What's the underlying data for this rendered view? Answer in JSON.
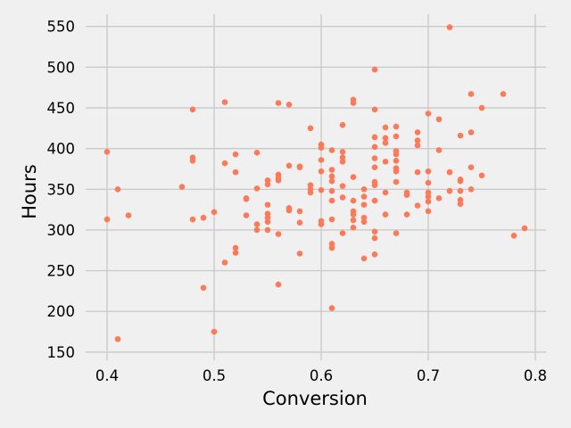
{
  "chart_data": {
    "type": "scatter",
    "title": "",
    "xlabel": "Conversion",
    "ylabel": "Hours",
    "xlim": [
      0.38,
      0.81
    ],
    "ylim": [
      140,
      565
    ],
    "xticks": [
      0.4,
      0.5,
      0.6,
      0.7,
      0.8
    ],
    "xtick_labels": [
      "0.4",
      "0.5",
      "0.6",
      "0.7",
      "0.8"
    ],
    "yticks": [
      150,
      200,
      250,
      300,
      350,
      400,
      450,
      500,
      550
    ],
    "ytick_labels": [
      "150",
      "200",
      "250",
      "300",
      "350",
      "400",
      "450",
      "500",
      "550"
    ],
    "grid": true,
    "legend": "none",
    "marker_color": "#fc7a57",
    "background": "#f0f0f0",
    "points": [
      [
        0.4,
        396
      ],
      [
        0.4,
        313
      ],
      [
        0.41,
        350
      ],
      [
        0.41,
        166
      ],
      [
        0.42,
        318
      ],
      [
        0.47,
        353
      ],
      [
        0.48,
        448
      ],
      [
        0.48,
        389
      ],
      [
        0.48,
        385
      ],
      [
        0.48,
        313
      ],
      [
        0.49,
        315
      ],
      [
        0.49,
        229
      ],
      [
        0.5,
        322
      ],
      [
        0.5,
        175
      ],
      [
        0.51,
        457
      ],
      [
        0.51,
        382
      ],
      [
        0.51,
        260
      ],
      [
        0.52,
        393
      ],
      [
        0.52,
        371
      ],
      [
        0.52,
        278
      ],
      [
        0.52,
        272
      ],
      [
        0.53,
        339
      ],
      [
        0.53,
        338
      ],
      [
        0.53,
        318
      ],
      [
        0.54,
        395
      ],
      [
        0.54,
        351
      ],
      [
        0.54,
        307
      ],
      [
        0.54,
        300
      ],
      [
        0.55,
        361
      ],
      [
        0.55,
        356
      ],
      [
        0.55,
        331
      ],
      [
        0.55,
        320
      ],
      [
        0.55,
        315
      ],
      [
        0.55,
        310
      ],
      [
        0.55,
        300
      ],
      [
        0.56,
        456
      ],
      [
        0.56,
        368
      ],
      [
        0.56,
        364
      ],
      [
        0.56,
        361
      ],
      [
        0.56,
        295
      ],
      [
        0.56,
        233
      ],
      [
        0.57,
        454
      ],
      [
        0.57,
        379
      ],
      [
        0.57,
        327
      ],
      [
        0.57,
        324
      ],
      [
        0.58,
        378
      ],
      [
        0.58,
        377
      ],
      [
        0.58,
        323
      ],
      [
        0.58,
        309
      ],
      [
        0.58,
        271
      ],
      [
        0.59,
        425
      ],
      [
        0.59,
        355
      ],
      [
        0.59,
        350
      ],
      [
        0.59,
        346
      ],
      [
        0.6,
        405
      ],
      [
        0.6,
        401
      ],
      [
        0.6,
        386
      ],
      [
        0.6,
        372
      ],
      [
        0.6,
        349
      ],
      [
        0.6,
        311
      ],
      [
        0.6,
        307
      ],
      [
        0.61,
        398
      ],
      [
        0.61,
        374
      ],
      [
        0.61,
        366
      ],
      [
        0.61,
        360
      ],
      [
        0.61,
        348
      ],
      [
        0.61,
        336
      ],
      [
        0.61,
        313
      ],
      [
        0.61,
        283
      ],
      [
        0.61,
        278
      ],
      [
        0.61,
        204
      ],
      [
        0.62,
        429
      ],
      [
        0.62,
        396
      ],
      [
        0.62,
        389
      ],
      [
        0.62,
        384
      ],
      [
        0.62,
        354
      ],
      [
        0.62,
        340
      ],
      [
        0.62,
        296
      ],
      [
        0.63,
        460
      ],
      [
        0.63,
        456
      ],
      [
        0.63,
        365
      ],
      [
        0.63,
        336
      ],
      [
        0.63,
        323
      ],
      [
        0.63,
        319
      ],
      [
        0.63,
        312
      ],
      [
        0.63,
        303
      ],
      [
        0.64,
        350
      ],
      [
        0.64,
        341
      ],
      [
        0.64,
        331
      ],
      [
        0.64,
        315
      ],
      [
        0.64,
        310
      ],
      [
        0.64,
        265
      ],
      [
        0.65,
        497
      ],
      [
        0.65,
        448
      ],
      [
        0.65,
        414
      ],
      [
        0.65,
        402
      ],
      [
        0.65,
        388
      ],
      [
        0.65,
        377
      ],
      [
        0.65,
        359
      ],
      [
        0.65,
        355
      ],
      [
        0.65,
        336
      ],
      [
        0.65,
        298
      ],
      [
        0.65,
        290
      ],
      [
        0.65,
        270
      ],
      [
        0.66,
        426
      ],
      [
        0.66,
        413
      ],
      [
        0.66,
        407
      ],
      [
        0.66,
        384
      ],
      [
        0.66,
        346
      ],
      [
        0.66,
        319
      ],
      [
        0.67,
        427
      ],
      [
        0.67,
        415
      ],
      [
        0.67,
        397
      ],
      [
        0.67,
        393
      ],
      [
        0.67,
        385
      ],
      [
        0.67,
        376
      ],
      [
        0.67,
        372
      ],
      [
        0.67,
        359
      ],
      [
        0.67,
        296
      ],
      [
        0.68,
        346
      ],
      [
        0.68,
        343
      ],
      [
        0.68,
        319
      ],
      [
        0.69,
        420
      ],
      [
        0.69,
        410
      ],
      [
        0.69,
        404
      ],
      [
        0.69,
        371
      ],
      [
        0.69,
        330
      ],
      [
        0.7,
        443
      ],
      [
        0.7,
        372
      ],
      [
        0.7,
        358
      ],
      [
        0.7,
        346
      ],
      [
        0.7,
        341
      ],
      [
        0.7,
        335
      ],
      [
        0.7,
        323
      ],
      [
        0.71,
        436
      ],
      [
        0.71,
        398
      ],
      [
        0.71,
        339
      ],
      [
        0.72,
        549
      ],
      [
        0.72,
        371
      ],
      [
        0.72,
        348
      ],
      [
        0.73,
        416
      ],
      [
        0.73,
        362
      ],
      [
        0.73,
        360
      ],
      [
        0.73,
        348
      ],
      [
        0.73,
        337
      ],
      [
        0.73,
        332
      ],
      [
        0.74,
        467
      ],
      [
        0.74,
        420
      ],
      [
        0.74,
        377
      ],
      [
        0.74,
        350
      ],
      [
        0.75,
        450
      ],
      [
        0.75,
        367
      ],
      [
        0.77,
        467
      ],
      [
        0.78,
        293
      ],
      [
        0.79,
        302
      ]
    ]
  }
}
